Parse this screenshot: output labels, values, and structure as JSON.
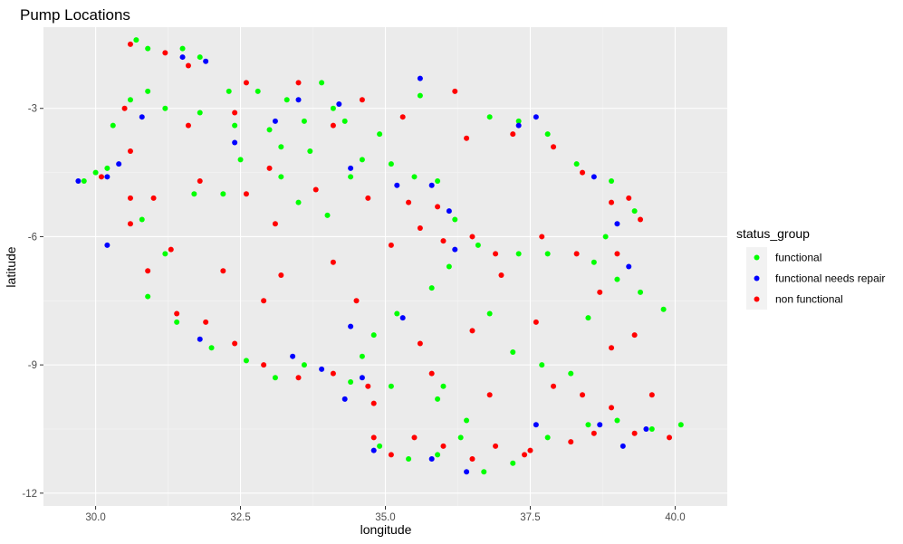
{
  "chart_data": {
    "type": "scatter",
    "title": "Pump Locations",
    "xlabel": "longitude",
    "ylabel": "latitude",
    "xlim": [
      29.1,
      40.9
    ],
    "ylim": [
      -12.3,
      -1.1
    ],
    "x_ticks": [
      30.0,
      32.5,
      35.0,
      37.5,
      40.0
    ],
    "x_tick_labels": [
      "30.0",
      "32.5",
      "35.0",
      "37.5",
      "40.0"
    ],
    "y_ticks": [
      -3,
      -6,
      -9,
      -12
    ],
    "y_tick_labels": [
      "-3",
      "-6",
      "-9",
      "-12"
    ],
    "grid": true,
    "legend": {
      "title": "status_group",
      "position": "right"
    },
    "series": [
      {
        "name": "functional",
        "color": "#00ff00",
        "points": [
          [
            30.7,
            -1.4
          ],
          [
            30.9,
            -1.6
          ],
          [
            31.5,
            -1.6
          ],
          [
            31.8,
            -1.8
          ],
          [
            32.3,
            -2.6
          ],
          [
            32.8,
            -2.6
          ],
          [
            33.3,
            -2.8
          ],
          [
            33.9,
            -2.4
          ],
          [
            34.1,
            -3.0
          ],
          [
            34.3,
            -3.3
          ],
          [
            33.6,
            -3.3
          ],
          [
            33.0,
            -3.5
          ],
          [
            32.4,
            -3.4
          ],
          [
            31.8,
            -3.1
          ],
          [
            31.2,
            -3.0
          ],
          [
            30.9,
            -2.6
          ],
          [
            30.6,
            -2.8
          ],
          [
            30.3,
            -3.4
          ],
          [
            30.0,
            -4.5
          ],
          [
            29.8,
            -4.7
          ],
          [
            30.2,
            -4.4
          ],
          [
            33.2,
            -3.9
          ],
          [
            33.7,
            -4.0
          ],
          [
            34.6,
            -4.2
          ],
          [
            35.1,
            -4.3
          ],
          [
            35.5,
            -4.6
          ],
          [
            35.9,
            -4.7
          ],
          [
            34.9,
            -3.6
          ],
          [
            35.6,
            -2.7
          ],
          [
            36.8,
            -3.2
          ],
          [
            37.3,
            -3.3
          ],
          [
            37.8,
            -3.6
          ],
          [
            38.3,
            -4.3
          ],
          [
            38.9,
            -4.7
          ],
          [
            39.3,
            -5.4
          ],
          [
            38.8,
            -6.0
          ],
          [
            38.6,
            -6.6
          ],
          [
            39.0,
            -7.0
          ],
          [
            39.4,
            -7.3
          ],
          [
            39.8,
            -7.7
          ],
          [
            38.5,
            -7.9
          ],
          [
            37.8,
            -6.4
          ],
          [
            37.3,
            -6.4
          ],
          [
            36.6,
            -6.2
          ],
          [
            36.1,
            -6.7
          ],
          [
            35.8,
            -7.2
          ],
          [
            35.2,
            -7.8
          ],
          [
            34.8,
            -8.3
          ],
          [
            34.6,
            -8.8
          ],
          [
            34.4,
            -9.4
          ],
          [
            35.1,
            -9.5
          ],
          [
            35.9,
            -9.8
          ],
          [
            36.4,
            -10.3
          ],
          [
            36.3,
            -10.7
          ],
          [
            35.9,
            -11.1
          ],
          [
            35.4,
            -11.2
          ],
          [
            34.9,
            -10.9
          ],
          [
            36.7,
            -11.5
          ],
          [
            37.2,
            -11.3
          ],
          [
            37.8,
            -10.7
          ],
          [
            38.5,
            -10.4
          ],
          [
            39.0,
            -10.3
          ],
          [
            39.6,
            -10.5
          ],
          [
            40.1,
            -10.4
          ],
          [
            33.6,
            -9.0
          ],
          [
            33.1,
            -9.3
          ],
          [
            32.6,
            -8.9
          ],
          [
            32.0,
            -8.6
          ],
          [
            31.4,
            -8.0
          ],
          [
            30.9,
            -7.4
          ],
          [
            31.2,
            -6.4
          ],
          [
            30.8,
            -5.6
          ],
          [
            31.7,
            -5.0
          ],
          [
            32.2,
            -5.0
          ],
          [
            33.2,
            -4.6
          ],
          [
            33.5,
            -5.2
          ],
          [
            34.0,
            -5.5
          ],
          [
            34.4,
            -4.6
          ],
          [
            32.5,
            -4.2
          ],
          [
            36.2,
            -5.6
          ],
          [
            36.8,
            -7.8
          ],
          [
            37.2,
            -8.7
          ],
          [
            36.0,
            -9.5
          ],
          [
            37.7,
            -9.0
          ],
          [
            38.2,
            -9.2
          ]
        ]
      },
      {
        "name": "functional needs repair",
        "color": "#0000ff",
        "points": [
          [
            31.5,
            -1.8
          ],
          [
            31.9,
            -1.9
          ],
          [
            29.7,
            -4.7
          ],
          [
            30.2,
            -4.6
          ],
          [
            30.4,
            -4.3
          ],
          [
            30.2,
            -6.2
          ],
          [
            30.8,
            -3.2
          ],
          [
            32.4,
            -3.8
          ],
          [
            33.1,
            -3.3
          ],
          [
            34.2,
            -2.9
          ],
          [
            33.5,
            -2.8
          ],
          [
            34.4,
            -4.4
          ],
          [
            35.2,
            -4.8
          ],
          [
            35.8,
            -4.8
          ],
          [
            36.1,
            -5.4
          ],
          [
            35.6,
            -2.3
          ],
          [
            37.3,
            -3.4
          ],
          [
            37.6,
            -3.2
          ],
          [
            38.6,
            -4.6
          ],
          [
            39.0,
            -5.7
          ],
          [
            39.2,
            -6.7
          ],
          [
            36.2,
            -6.3
          ],
          [
            35.3,
            -7.9
          ],
          [
            34.4,
            -8.1
          ],
          [
            33.4,
            -8.8
          ],
          [
            34.6,
            -9.3
          ],
          [
            34.3,
            -9.8
          ],
          [
            31.8,
            -8.4
          ],
          [
            35.8,
            -11.2
          ],
          [
            34.8,
            -11.0
          ],
          [
            36.4,
            -11.5
          ],
          [
            38.7,
            -10.4
          ],
          [
            39.1,
            -10.9
          ],
          [
            39.5,
            -10.5
          ],
          [
            37.6,
            -10.4
          ],
          [
            33.9,
            -9.1
          ]
        ]
      },
      {
        "name": "non functional",
        "color": "#ff0000",
        "points": [
          [
            30.6,
            -1.5
          ],
          [
            31.2,
            -1.7
          ],
          [
            31.6,
            -2.0
          ],
          [
            32.6,
            -2.4
          ],
          [
            33.5,
            -2.4
          ],
          [
            34.6,
            -2.8
          ],
          [
            32.4,
            -3.1
          ],
          [
            31.6,
            -3.4
          ],
          [
            30.5,
            -3.0
          ],
          [
            30.1,
            -4.6
          ],
          [
            30.6,
            -5.1
          ],
          [
            30.6,
            -5.7
          ],
          [
            31.0,
            -5.1
          ],
          [
            31.3,
            -6.3
          ],
          [
            30.9,
            -6.8
          ],
          [
            31.4,
            -7.8
          ],
          [
            31.9,
            -8.0
          ],
          [
            32.4,
            -8.5
          ],
          [
            32.9,
            -9.0
          ],
          [
            33.5,
            -9.3
          ],
          [
            34.1,
            -9.2
          ],
          [
            34.7,
            -9.5
          ],
          [
            33.2,
            -6.9
          ],
          [
            32.6,
            -5.0
          ],
          [
            33.0,
            -4.4
          ],
          [
            33.8,
            -4.9
          ],
          [
            34.1,
            -3.4
          ],
          [
            35.3,
            -3.2
          ],
          [
            36.2,
            -2.6
          ],
          [
            36.4,
            -3.7
          ],
          [
            37.2,
            -3.6
          ],
          [
            37.9,
            -3.9
          ],
          [
            38.4,
            -4.5
          ],
          [
            38.9,
            -5.2
          ],
          [
            39.2,
            -5.1
          ],
          [
            39.4,
            -5.6
          ],
          [
            39.0,
            -6.4
          ],
          [
            39.3,
            -8.3
          ],
          [
            38.9,
            -8.6
          ],
          [
            39.6,
            -9.7
          ],
          [
            38.9,
            -10.0
          ],
          [
            38.6,
            -10.6
          ],
          [
            39.3,
            -10.6
          ],
          [
            39.9,
            -10.7
          ],
          [
            38.2,
            -10.8
          ],
          [
            37.5,
            -11.0
          ],
          [
            36.9,
            -10.9
          ],
          [
            36.0,
            -10.9
          ],
          [
            35.5,
            -10.7
          ],
          [
            34.8,
            -10.7
          ],
          [
            35.1,
            -11.1
          ],
          [
            36.5,
            -11.2
          ],
          [
            37.4,
            -11.1
          ],
          [
            38.4,
            -9.7
          ],
          [
            37.9,
            -9.5
          ],
          [
            37.6,
            -8.0
          ],
          [
            37.0,
            -6.9
          ],
          [
            36.5,
            -6.0
          ],
          [
            35.6,
            -5.8
          ],
          [
            35.1,
            -6.2
          ],
          [
            36.0,
            -6.1
          ],
          [
            36.9,
            -6.4
          ],
          [
            37.7,
            -6.0
          ],
          [
            38.3,
            -6.4
          ],
          [
            38.7,
            -7.3
          ],
          [
            36.5,
            -8.2
          ],
          [
            35.6,
            -8.5
          ],
          [
            35.8,
            -9.2
          ],
          [
            36.8,
            -9.7
          ],
          [
            34.7,
            -5.1
          ],
          [
            35.4,
            -5.2
          ],
          [
            35.9,
            -5.3
          ],
          [
            34.5,
            -7.5
          ],
          [
            32.9,
            -7.5
          ],
          [
            34.1,
            -6.6
          ],
          [
            32.2,
            -6.8
          ],
          [
            33.1,
            -5.7
          ],
          [
            34.8,
            -9.9
          ],
          [
            31.8,
            -4.7
          ],
          [
            30.6,
            -4.0
          ]
        ]
      }
    ]
  }
}
